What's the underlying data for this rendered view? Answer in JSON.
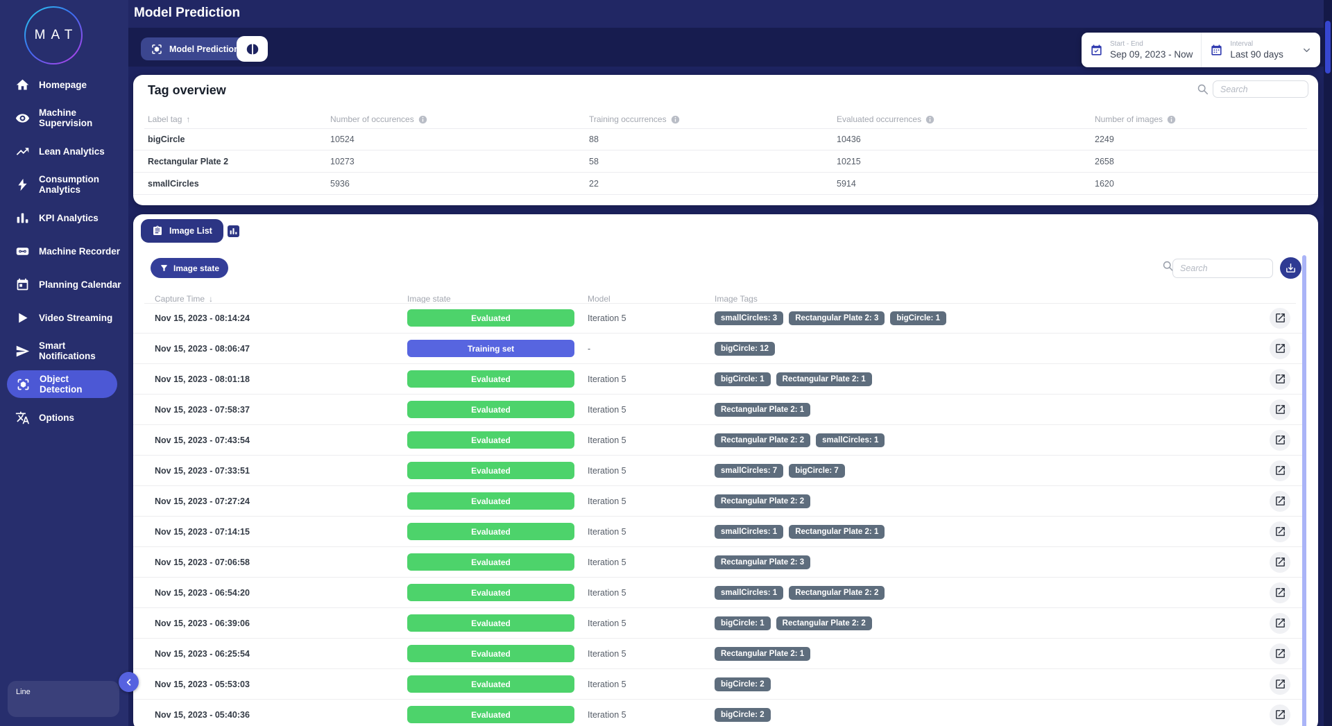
{
  "app": {
    "logo": "MAT"
  },
  "sidebar": {
    "items": [
      {
        "label": "Homepage",
        "icon": "home"
      },
      {
        "label": "Machine Supervision",
        "icon": "eye"
      },
      {
        "label": "Lean Analytics",
        "icon": "trend"
      },
      {
        "label": "Consumption Analytics",
        "icon": "bolt"
      },
      {
        "label": "KPI Analytics",
        "icon": "bar-chart"
      },
      {
        "label": "Machine Recorder",
        "icon": "cassette"
      },
      {
        "label": "Planning Calendar",
        "icon": "calendar"
      },
      {
        "label": "Video Streaming",
        "icon": "play"
      },
      {
        "label": "Smart Notifications",
        "icon": "send"
      },
      {
        "label": "Object Detection",
        "icon": "object-detection",
        "active": true
      },
      {
        "label": "Options",
        "icon": "translate"
      }
    ],
    "bottom_panel_label": "Line"
  },
  "header": {
    "page_title": "Model Prediction",
    "tab_label": "Model Prediction",
    "date_range": {
      "label": "Start - End",
      "value": "Sep 09, 2023 - Now"
    },
    "interval": {
      "label": "Interval",
      "value": "Last 90 days"
    }
  },
  "tag_overview": {
    "title": "Tag overview",
    "search_placeholder": "Search",
    "columns": [
      "Label tag",
      "Number of occurences",
      "Training occurrences",
      "Evaluated occurrences",
      "Number of images"
    ],
    "rows": [
      {
        "label": "bigCircle",
        "occurrences": "10524",
        "training": "88",
        "evaluated": "10436",
        "images": "2249"
      },
      {
        "label": "Rectangular Plate 2",
        "occurrences": "10273",
        "training": "58",
        "evaluated": "10215",
        "images": "2658"
      },
      {
        "label": "smallCircles",
        "occurrences": "5936",
        "training": "22",
        "evaluated": "5914",
        "images": "1620"
      }
    ]
  },
  "image_list": {
    "tab_label": "Image List",
    "filter_label": "Image state",
    "search_placeholder": "Search",
    "columns": [
      "Capture Time",
      "Image state",
      "Model",
      "Image Tags"
    ],
    "state_colors": {
      "Evaluated": "#4dd36b",
      "Training set": "#5765e0"
    },
    "rows": [
      {
        "time": "Nov 15, 2023 - 08:14:24",
        "state": "Evaluated",
        "model": "Iteration 5",
        "tags": [
          "smallCircles: 3",
          "Rectangular Plate 2: 3",
          "bigCircle: 1"
        ]
      },
      {
        "time": "Nov 15, 2023 - 08:06:47",
        "state": "Training set",
        "model": "-",
        "tags": [
          "bigCircle: 12"
        ]
      },
      {
        "time": "Nov 15, 2023 - 08:01:18",
        "state": "Evaluated",
        "model": "Iteration 5",
        "tags": [
          "bigCircle: 1",
          "Rectangular Plate 2: 1"
        ]
      },
      {
        "time": "Nov 15, 2023 - 07:58:37",
        "state": "Evaluated",
        "model": "Iteration 5",
        "tags": [
          "Rectangular Plate 2: 1"
        ]
      },
      {
        "time": "Nov 15, 2023 - 07:43:54",
        "state": "Evaluated",
        "model": "Iteration 5",
        "tags": [
          "Rectangular Plate 2: 2",
          "smallCircles: 1"
        ]
      },
      {
        "time": "Nov 15, 2023 - 07:33:51",
        "state": "Evaluated",
        "model": "Iteration 5",
        "tags": [
          "smallCircles: 7",
          "bigCircle: 7"
        ]
      },
      {
        "time": "Nov 15, 2023 - 07:27:24",
        "state": "Evaluated",
        "model": "Iteration 5",
        "tags": [
          "Rectangular Plate 2: 2"
        ]
      },
      {
        "time": "Nov 15, 2023 - 07:14:15",
        "state": "Evaluated",
        "model": "Iteration 5",
        "tags": [
          "smallCircles: 1",
          "Rectangular Plate 2: 1"
        ]
      },
      {
        "time": "Nov 15, 2023 - 07:06:58",
        "state": "Evaluated",
        "model": "Iteration 5",
        "tags": [
          "Rectangular Plate 2: 3"
        ]
      },
      {
        "time": "Nov 15, 2023 - 06:54:20",
        "state": "Evaluated",
        "model": "Iteration 5",
        "tags": [
          "smallCircles: 1",
          "Rectangular Plate 2: 2"
        ]
      },
      {
        "time": "Nov 15, 2023 - 06:39:06",
        "state": "Evaluated",
        "model": "Iteration 5",
        "tags": [
          "bigCircle: 1",
          "Rectangular Plate 2: 2"
        ]
      },
      {
        "time": "Nov 15, 2023 - 06:25:54",
        "state": "Evaluated",
        "model": "Iteration 5",
        "tags": [
          "Rectangular Plate 2: 1"
        ]
      },
      {
        "time": "Nov 15, 2023 - 05:53:03",
        "state": "Evaluated",
        "model": "Iteration 5",
        "tags": [
          "bigCircle: 2"
        ]
      },
      {
        "time": "Nov 15, 2023 - 05:40:36",
        "state": "Evaluated",
        "model": "Iteration 5",
        "tags": [
          "bigCircle: 2"
        ]
      }
    ]
  },
  "colors": {
    "sidebar_bg": "#272e6d",
    "content_bg": "#1d2360",
    "active_nav": "#4c58d5",
    "primary_button": "#2c3584",
    "evaluated_badge": "#4dd36b",
    "training_badge": "#5765e0",
    "tag_pill": "#5e6d7d"
  }
}
